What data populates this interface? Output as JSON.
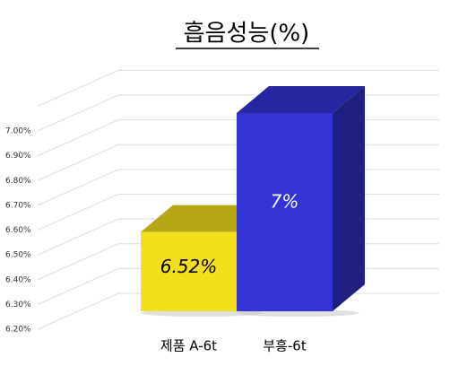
{
  "chart_data": {
    "type": "bar3d",
    "title": "흡음성능(%)",
    "categories": [
      "제품 A-6t",
      "부흥-6t"
    ],
    "values": [
      6.52,
      7
    ],
    "value_labels": [
      "6.52%",
      "7%"
    ],
    "colors": [
      "#f2e01a",
      "#3333d6"
    ],
    "ylim": [
      6.2,
      7.1
    ],
    "yticks": [
      {
        "value": 6.2,
        "label": "6.20%"
      },
      {
        "value": 6.3,
        "label": "6.30%"
      },
      {
        "value": 6.4,
        "label": "6.40%"
      },
      {
        "value": 6.5,
        "label": "6.50%"
      },
      {
        "value": 6.6,
        "label": "6.60%"
      },
      {
        "value": 6.7,
        "label": "6.70%"
      },
      {
        "value": 6.8,
        "label": "6.80%"
      },
      {
        "value": 6.9,
        "label": "6.90%"
      },
      {
        "value": 7.0,
        "label": "7.00%"
      }
    ],
    "grid": true
  }
}
